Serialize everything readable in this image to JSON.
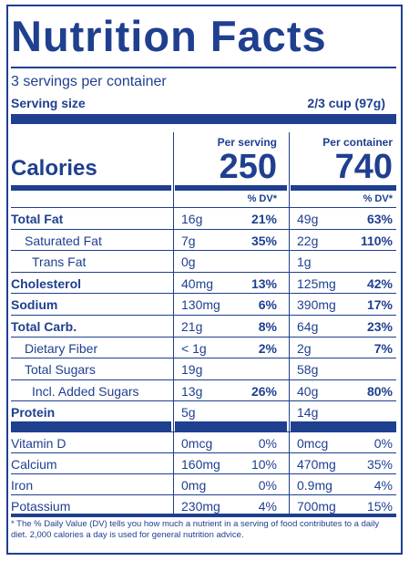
{
  "title": "Nutrition Facts",
  "servings_per_container": "3 servings per container",
  "serving_size_label": "Serving size",
  "serving_size_value": "2/3 cup (97g)",
  "columns": {
    "per_serving": "Per serving",
    "per_container": "Per container"
  },
  "calories": {
    "label": "Calories",
    "per_serving": "250",
    "per_container": "740"
  },
  "dv_header": "% DV*",
  "nutrients": [
    {
      "name": "Total Fat",
      "serving_amount": "16g",
      "serving_dv": "21%",
      "container_amount": "49g",
      "container_dv": "63%"
    },
    {
      "name": "Saturated Fat",
      "serving_amount": "7g",
      "serving_dv": "35%",
      "container_amount": "22g",
      "container_dv": "110%"
    },
    {
      "name": "Trans Fat",
      "serving_amount": "0g",
      "serving_dv": "",
      "container_amount": "1g",
      "container_dv": ""
    },
    {
      "name": "Cholesterol",
      "serving_amount": "40mg",
      "serving_dv": "13%",
      "container_amount": "125mg",
      "container_dv": "42%"
    },
    {
      "name": "Sodium",
      "serving_amount": "130mg",
      "serving_dv": "6%",
      "container_amount": "390mg",
      "container_dv": "17%"
    },
    {
      "name": "Total Carb.",
      "serving_amount": "21g",
      "serving_dv": "8%",
      "container_amount": "64g",
      "container_dv": "23%"
    },
    {
      "name": "Dietary Fiber",
      "serving_amount": "< 1g",
      "serving_dv": "2%",
      "container_amount": "2g",
      "container_dv": "7%"
    },
    {
      "name": "Total Sugars",
      "serving_amount": "19g",
      "serving_dv": "",
      "container_amount": "58g",
      "container_dv": ""
    },
    {
      "name": "Incl. Added Sugars",
      "serving_amount": "13g",
      "serving_dv": "26%",
      "container_amount": "40g",
      "container_dv": "80%"
    },
    {
      "name": "Protein",
      "serving_amount": "5g",
      "serving_dv": "",
      "container_amount": "14g",
      "container_dv": ""
    }
  ],
  "vitamins": [
    {
      "name": "Vitamin D",
      "serving_amount": "0mcg",
      "serving_dv": "0%",
      "container_amount": "0mcg",
      "container_dv": "0%"
    },
    {
      "name": "Calcium",
      "serving_amount": "160mg",
      "serving_dv": "10%",
      "container_amount": "470mg",
      "container_dv": "35%"
    },
    {
      "name": "Iron",
      "serving_amount": "0mg",
      "serving_dv": "0%",
      "container_amount": "0.9mg",
      "container_dv": "4%"
    },
    {
      "name": "Potassium",
      "serving_amount": "230mg",
      "serving_dv": "4%",
      "container_amount": "700mg",
      "container_dv": "15%"
    }
  ],
  "footnote": "* The % Daily Value (DV) tells you how much a nutrient in a serving of food contributes to a daily diet. 2,000 calories a day is used for general nutrition advice.",
  "colors": {
    "ink": "#1f3f8f",
    "background": "#ffffff"
  }
}
